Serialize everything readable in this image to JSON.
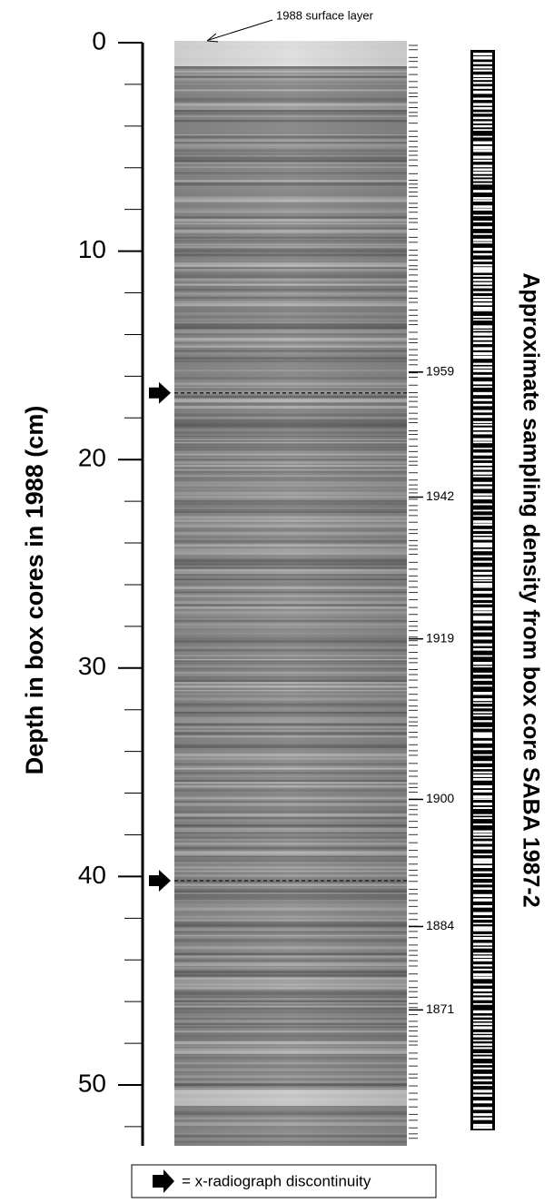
{
  "y_axis": {
    "label": "Depth in box cores in 1988 (cm)",
    "lim": [
      0,
      53
    ],
    "ticks": [
      0,
      10,
      20,
      30,
      40,
      50
    ],
    "minor_ticks": [
      2,
      4,
      6,
      8,
      12,
      14,
      16,
      18,
      22,
      24,
      26,
      28,
      32,
      34,
      36,
      38,
      42,
      44,
      46,
      48,
      52
    ]
  },
  "annotation": {
    "label": "1988 surface layer"
  },
  "dates": [
    {
      "year": 1959,
      "depth": 15.8
    },
    {
      "year": 1942,
      "depth": 21.8
    },
    {
      "year": 1919,
      "depth": 28.6
    },
    {
      "year": 1900,
      "depth": 36.3
    },
    {
      "year": 1884,
      "depth": 42.4
    },
    {
      "year": 1871,
      "depth": 46.4
    }
  ],
  "discontinuities": [
    16.8,
    40.2
  ],
  "legend": {
    "label": "= x-radiograph discontinuity"
  },
  "side_title": "Approximate sampling density from box core SABA 1987-2"
}
